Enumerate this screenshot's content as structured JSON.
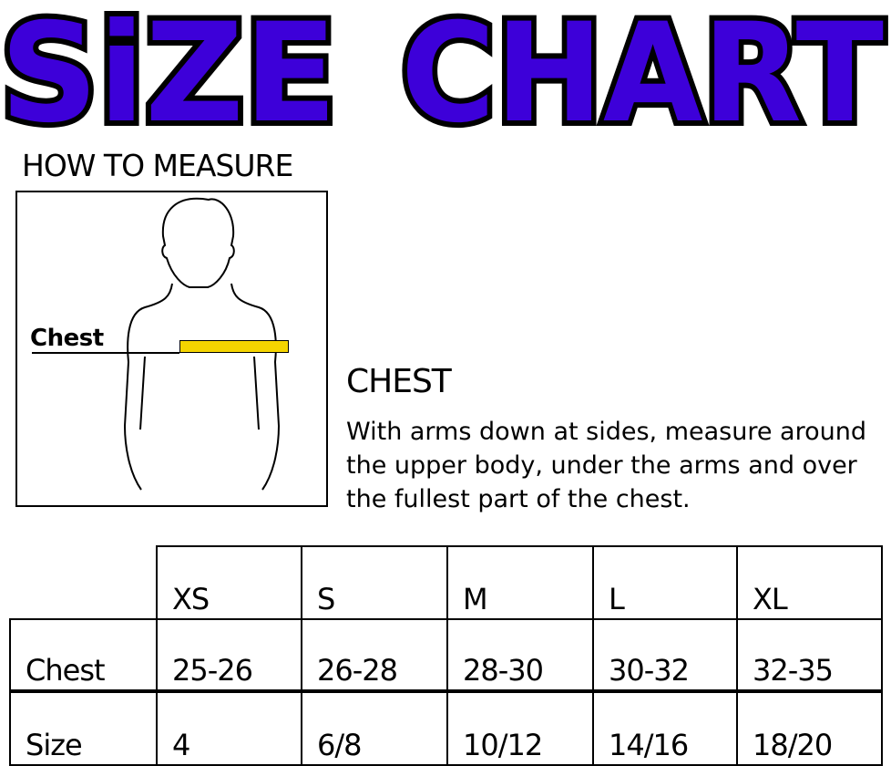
{
  "title": "SiZE CHART",
  "title_color": "#3d00d9",
  "how_to_measure": "HOW TO MEASURE",
  "figure": {
    "chest_label": "Chest",
    "tape_color": "#f5d400"
  },
  "chest_section": {
    "heading": "CHEST",
    "description": "With arms down at sides, measure around the upper body, under the arms and over the fullest part of the chest."
  },
  "table": {
    "columns": [
      "XS",
      "S",
      "M",
      "L",
      "XL"
    ],
    "rows": [
      {
        "label": "Chest",
        "values": [
          "25-26",
          "26-28",
          "28-30",
          "30-32",
          "32-35"
        ]
      },
      {
        "label": "Size",
        "values": [
          "4",
          "6/8",
          "10/12",
          "14/16",
          "18/20"
        ]
      }
    ]
  }
}
